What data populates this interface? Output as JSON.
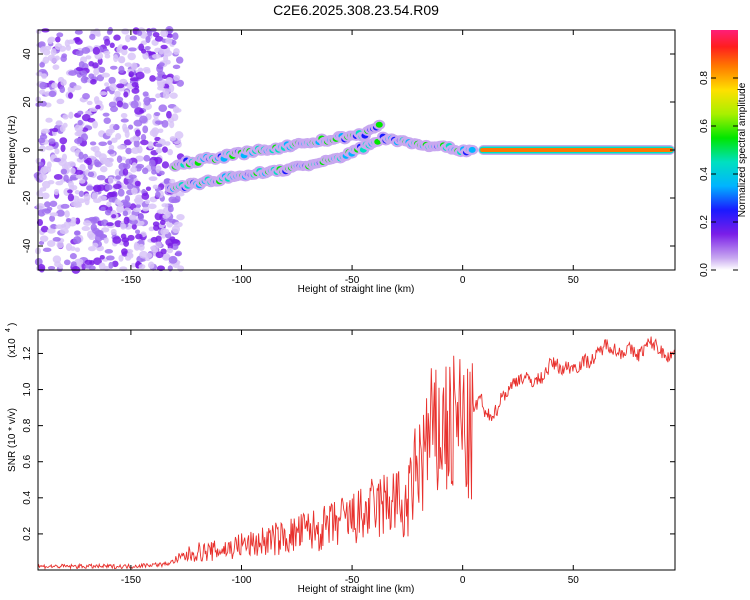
{
  "title": "C2E6.2025.308.23.54.R09",
  "chart_data": [
    {
      "type": "heatmap",
      "panel": "top",
      "xlabel": "Height of straight line (km)",
      "ylabel": "Frequency (Hz)",
      "xlim": [
        -192,
        96
      ],
      "ylim": [
        -50,
        50
      ],
      "xticks": [
        -150,
        -100,
        -50,
        0,
        50
      ],
      "yticks": [
        -40,
        -20,
        0,
        20,
        40
      ],
      "noise_region_x": [
        -192,
        -132
      ],
      "colorbar": {
        "label": "Normalized spectral amplitude",
        "range": [
          0,
          1
        ],
        "ticks": [
          "0.0",
          "0.2",
          "0.4",
          "0.6",
          "0.8"
        ]
      },
      "features": [
        {
          "name": "upper branch",
          "x": [
            -130,
            -110,
            -90,
            -70,
            -55,
            -43,
            -37
          ],
          "y": [
            -6,
            -3,
            0,
            3,
            5,
            7,
            10
          ]
        },
        {
          "name": "lower branch",
          "x": [
            -132,
            -115,
            -95,
            -80,
            -62,
            -50,
            -38
          ],
          "y": [
            -16,
            -13,
            -10,
            -8,
            -5,
            -1,
            4
          ]
        },
        {
          "name": "descending branch",
          "x": [
            -36,
            -30,
            -22,
            -15,
            -8,
            -2,
            5
          ],
          "y": [
            5,
            4,
            3,
            2,
            1,
            0,
            0
          ]
        },
        {
          "name": "constant tone",
          "x": [
            7,
            96
          ],
          "y": [
            0,
            0
          ],
          "peak_amplitude": 1.0
        }
      ]
    },
    {
      "type": "line",
      "panel": "bottom",
      "xlabel": "Height of straight line (km)",
      "ylabel": "SNR (10 * v/v)",
      "y_scale_note": "(x10",
      "y_scale_exponent": "4",
      "xlim": [
        -192,
        96
      ],
      "ylim": [
        0,
        1.33
      ],
      "xticks": [
        -150,
        -100,
        -50,
        0,
        50
      ],
      "yticks": [
        "0.2",
        "0.4",
        "0.6",
        "0.8",
        "1.0",
        "1.2"
      ],
      "series": [
        {
          "name": "SNR",
          "color": "#e8302c",
          "x": [
            -192,
            -180,
            -170,
            -160,
            -150,
            -140,
            -135,
            -130,
            -125,
            -120,
            -115,
            -110,
            -105,
            -100,
            -95,
            -90,
            -85,
            -80,
            -75,
            -70,
            -65,
            -60,
            -55,
            -50,
            -45,
            -40,
            -35,
            -30,
            -27,
            -25,
            -22,
            -20,
            -18,
            -15,
            -12,
            -10,
            -8,
            -5,
            -2,
            0,
            3,
            5,
            8,
            10,
            12,
            15,
            18,
            20,
            25,
            30,
            35,
            40,
            45,
            50,
            55,
            60,
            65,
            70,
            75,
            80,
            85,
            90,
            96
          ],
          "y": [
            0.02,
            0.02,
            0.02,
            0.02,
            0.02,
            0.03,
            0.03,
            0.05,
            0.08,
            0.1,
            0.1,
            0.11,
            0.12,
            0.14,
            0.14,
            0.16,
            0.17,
            0.18,
            0.2,
            0.22,
            0.22,
            0.24,
            0.27,
            0.28,
            0.3,
            0.34,
            0.36,
            0.4,
            0.3,
            0.35,
            0.5,
            0.6,
            0.62,
            0.75,
            0.72,
            0.78,
            0.8,
            0.75,
            0.85,
            0.8,
            0.7,
            0.82,
            0.95,
            0.85,
            0.88,
            0.92,
            1.0,
            0.98,
            1.02,
            1.05,
            1.1,
            1.15,
            1.07,
            1.12,
            1.2,
            1.18,
            1.21,
            1.2,
            1.27,
            1.2,
            1.22,
            1.2,
            1.24
          ]
        }
      ]
    }
  ]
}
